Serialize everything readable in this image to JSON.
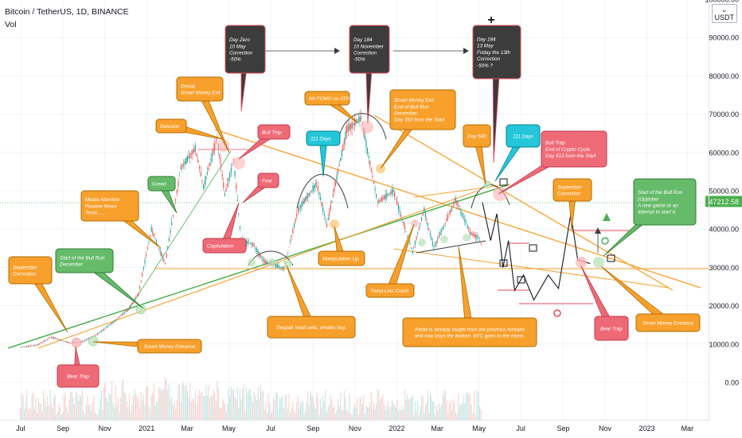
{
  "header": {
    "title": "Bitcoin / TetherUS, 1D, BINANCE",
    "indicator": "Vol",
    "currency": "USDT",
    "currency_prefix": "⌄"
  },
  "price_label": "47212.58",
  "colors": {
    "orange": "#f7a02c",
    "green": "#4caf50",
    "red": "#e54a58",
    "dark": "#3c3c3c",
    "cyan": "#26c6da",
    "candle_up": "#26a69a",
    "candle_down": "#ef5350"
  },
  "chart_data": {
    "type": "line",
    "series": [
      {
        "values": [
          [
            "2020-07-01",
            9200
          ],
          [
            "2020-07-25",
            9700
          ],
          [
            "2020-08-15",
            11800
          ],
          [
            "2020-09-10",
            10300
          ],
          [
            "2020-10-01",
            10700
          ],
          [
            "2020-10-25",
            13000
          ],
          [
            "2020-11-15",
            16000
          ],
          [
            "2020-12-05",
            19000
          ],
          [
            "2020-12-20",
            23000
          ],
          [
            "2021-01-08",
            40000
          ],
          [
            "2021-01-28",
            31000
          ],
          [
            "2021-02-20",
            56000
          ],
          [
            "2021-03-13",
            61000
          ],
          [
            "2021-03-25",
            51000
          ],
          [
            "2021-04-14",
            64000
          ],
          [
            "2021-04-25",
            49000
          ],
          [
            "2021-05-08",
            58000
          ],
          [
            "2021-05-19",
            37000
          ],
          [
            "2021-06-05",
            36000
          ],
          [
            "2021-06-22",
            31500
          ],
          [
            "2021-07-20",
            29800
          ],
          [
            "2021-08-10",
            45000
          ],
          [
            "2021-09-06",
            52000
          ],
          [
            "2021-09-21",
            41000
          ],
          [
            "2021-10-20",
            66000
          ],
          [
            "2021-11-10",
            69000
          ],
          [
            "2021-12-04",
            47000
          ],
          [
            "2021-12-27",
            50000
          ],
          [
            "2022-01-24",
            34000
          ],
          [
            "2022-02-10",
            45000
          ],
          [
            "2022-02-24",
            35000
          ],
          [
            "2022-03-28",
            47700
          ],
          [
            "2022-04-18",
            39000
          ],
          [
            "2022-04-30",
            37700
          ],
          [
            "2022-05-06",
            36000
          ]
        ]
      }
    ],
    "projection": [
      [
        "2022-05-06",
        47000
      ],
      [
        "2022-05-18",
        37000
      ],
      [
        "2022-05-27",
        44000
      ],
      [
        "2022-06-05",
        30000
      ],
      [
        "2022-06-13",
        37000
      ],
      [
        "2022-06-22",
        24000
      ],
      [
        "2022-07-05",
        28000
      ],
      [
        "2022-07-20",
        21500
      ],
      [
        "2022-08-10",
        28000
      ],
      [
        "2022-08-25",
        24500
      ],
      [
        "2022-09-12",
        44000
      ],
      [
        "2022-09-22",
        32000
      ],
      [
        "2022-10-10",
        31000
      ]
    ],
    "xlabels": [
      "Jul",
      "Sep",
      "Nov",
      "2021",
      "Mar",
      "May",
      "Jul",
      "Sep",
      "Nov",
      "2022",
      "Mar",
      "May",
      "Jul",
      "Sep",
      "Nov",
      "2023",
      "Mar"
    ],
    "ylabels": [
      "100000.00",
      "90000.00",
      "80000.00",
      "70000.00",
      "60000.00",
      "50000.00",
      "40000.00",
      "30000.00",
      "20000.00",
      "10000.00",
      "0.00"
    ],
    "ylim": [
      -10000,
      102000
    ]
  },
  "callouts": [
    {
      "key": "day_zero",
      "lines": [
        "Day Zero",
        "10 May",
        "Correction",
        "-50%"
      ],
      "style": "dark"
    },
    {
      "key": "day184a",
      "lines": [
        "Day 184",
        "10 November",
        "Correction",
        "-50%"
      ],
      "style": "dark"
    },
    {
      "key": "day184b",
      "lines": [
        "Day 184",
        "13 May",
        "Friday the 13th",
        "Correction",
        "-50% ?"
      ],
      "style": "dark"
    },
    {
      "key": "denial",
      "lines": [
        "Denial",
        "Smart Money Exit"
      ],
      "style": "orange"
    },
    {
      "key": "delusion",
      "lines": [
        "Delusion"
      ],
      "style": "orange"
    },
    {
      "key": "bulltrap1",
      "lines": [
        "Bull Trap"
      ],
      "style": "red"
    },
    {
      "key": "fear",
      "lines": [
        "Fear"
      ],
      "style": "red"
    },
    {
      "key": "days111a",
      "lines": [
        "111 Days"
      ],
      "style": "cyan"
    },
    {
      "key": "nofomo",
      "lines": [
        "No FOMO on ATH"
      ],
      "style": "orange"
    },
    {
      "key": "smexit",
      "lines": [
        "Smart Money Exit",
        "End of Bull Run",
        "December",
        "Day 350 from the Start"
      ],
      "style": "orange"
    },
    {
      "key": "day500",
      "lines": [
        "Day 500"
      ],
      "style": "orange"
    },
    {
      "key": "days111b",
      "lines": [
        "111 Days"
      ],
      "style": "cyan"
    },
    {
      "key": "bulltrap2",
      "lines": [
        "Bull Trap",
        "End of Crypto Cycle",
        "Day 513 from the Start"
      ],
      "style": "red"
    },
    {
      "key": "greed",
      "lines": [
        "Greed"
      ],
      "style": "green"
    },
    {
      "key": "media",
      "lines": [
        "Media Attention",
        "Positive News",
        "Tesla ....."
      ],
      "style": "orange"
    },
    {
      "key": "capitulation",
      "lines": [
        "Capitulation"
      ],
      "style": "red"
    },
    {
      "key": "manip",
      "lines": [
        "Manipulation Up"
      ],
      "style": "orange"
    },
    {
      "key": "trendcrash",
      "lines": [
        "Trend Line Crash"
      ],
      "style": "orange"
    },
    {
      "key": "septcorr2",
      "lines": [
        "September",
        "Correction"
      ],
      "style": "orange"
    },
    {
      "key": "startbull2",
      "lines": [
        "Start of the Bull Run",
        "(Up)tober",
        "A new game or an",
        "attempt to start it."
      ],
      "style": "green"
    },
    {
      "key": "septcorr1",
      "lines": [
        "September",
        "Correction"
      ],
      "style": "orange"
    },
    {
      "key": "startbull1",
      "lines": [
        "Start of the Bull Run",
        "December"
      ],
      "style": "green"
    },
    {
      "key": "despair",
      "lines": [
        "Despair retail sells, whales buy."
      ],
      "style": "orange"
    },
    {
      "key": "retail",
      "lines": [
        "Retail is already taught from the previous mistake",
        "and now buys the bottom. BTC goes to the moon."
      ],
      "style": "orange"
    },
    {
      "key": "sme1",
      "lines": [
        "Smart Money Entrance"
      ],
      "style": "orange"
    },
    {
      "key": "beartrap1",
      "lines": [
        "Bear Trap"
      ],
      "style": "red"
    },
    {
      "key": "beartrap2",
      "lines": [
        "Bear Trap"
      ],
      "style": "red"
    },
    {
      "key": "sme2",
      "lines": [
        "Smart Money Entrance"
      ],
      "style": "orange"
    }
  ]
}
